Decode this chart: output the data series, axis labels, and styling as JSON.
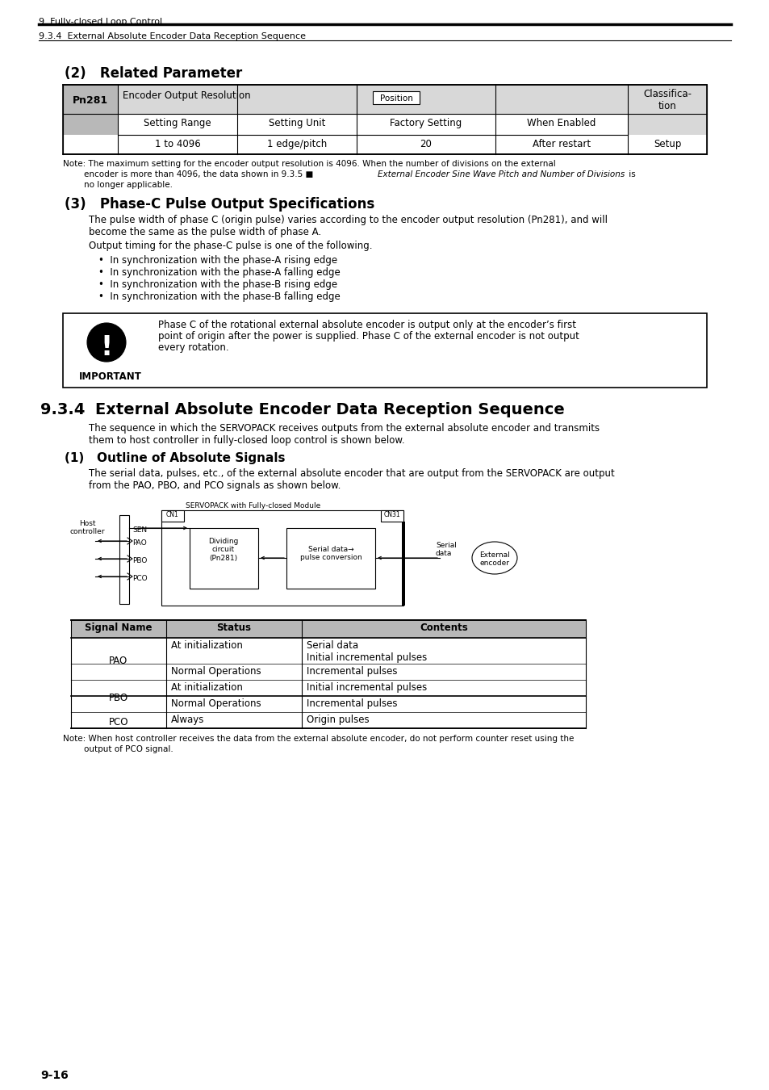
{
  "page_bg": "#ffffff",
  "header_line1": "9  Fully-closed Loop Control",
  "header_line2": "9.3.4  External Absolute Encoder Data Reception Sequence",
  "section2_title": "(2)   Related Parameter",
  "section3_title": "(3)   Phase-C Pulse Output Specifications",
  "section3_para1": "The pulse width of phase C (origin pulse) varies according to the encoder output resolution (Pn281), and will\nbecome the same as the pulse width of phase A.",
  "section3_para2": "Output timing for the phase-C pulse is one of the following.",
  "section3_bullets": [
    "•  In synchronization with the phase-A rising edge",
    "•  In synchronization with the phase-A falling edge",
    "•  In synchronization with the phase-B rising edge",
    "•  In synchronization with the phase-B falling edge"
  ],
  "important_text_line1": "Phase C of the rotational external absolute encoder is output only at the encoder’s first",
  "important_text_line2": "point of origin after the power is supplied. Phase C of the external encoder is not output",
  "important_text_line3": "every rotation.",
  "section934_num": "9.3.4",
  "section934_rest": "External Absolute Encoder Data Reception Sequence",
  "section934_para": "The sequence in which the SERVOPACK receives outputs from the external absolute encoder and transmits\nthem to host controller in fully-closed loop control is shown below.",
  "section1_title": "(1)   Outline of Absolute Signals",
  "section1_para": "The serial data, pulses, etc., of the external absolute encoder that are output from the SERVOPACK are output\nfrom the PAO, PBO, and PCO signals as shown below.",
  "table2_headers": [
    "Signal Name",
    "Status",
    "Contents"
  ],
  "page_number": "9-16"
}
